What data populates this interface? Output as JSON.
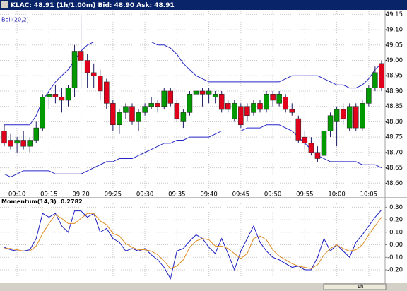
{
  "header": {
    "title": "KLAC: 48.91 (1h/1.00m) Bid: 48.90 Ask: 48.91"
  },
  "scrollbar": {
    "label": "1h"
  },
  "chart_data": [
    {
      "type": "candlestick",
      "label": "Boll(20,2)",
      "up_color": "#009a00",
      "down_color": "#e0001c",
      "grid": true,
      "categories": [
        null,
        null,
        "09:10",
        null,
        null,
        null,
        null,
        "09:15",
        null,
        null,
        null,
        null,
        "09:20",
        null,
        null,
        null,
        null,
        "09:25",
        null,
        null,
        null,
        null,
        "09:30",
        null,
        null,
        null,
        null,
        "09:35",
        null,
        null,
        null,
        null,
        "09:40",
        null,
        null,
        null,
        null,
        "09:45",
        null,
        null,
        null,
        null,
        "09:50",
        null,
        null,
        null,
        null,
        "09:55",
        null,
        null,
        null,
        null,
        "10:00",
        null,
        null,
        null,
        null,
        "10:05",
        null,
        null
      ],
      "open": [
        48.77,
        48.74,
        48.73,
        48.74,
        48.72,
        48.74,
        48.78,
        48.88,
        48.89,
        48.88,
        48.87,
        48.91,
        49.03,
        49.0,
        48.96,
        48.95,
        48.93,
        48.86,
        48.79,
        48.83,
        48.85,
        48.8,
        48.83,
        48.85,
        48.86,
        48.85,
        48.9,
        48.86,
        48.8,
        48.83,
        48.89,
        48.9,
        48.89,
        48.88,
        48.89,
        48.86,
        48.81,
        48.85,
        48.85,
        48.83,
        48.86,
        48.84,
        48.89,
        48.86,
        48.88,
        48.84,
        48.81,
        48.75,
        48.73,
        48.7,
        48.69,
        48.77,
        48.8,
        48.84,
        48.78,
        48.85,
        48.78,
        48.86,
        48.91,
        48.99
      ],
      "high": [
        48.79,
        48.76,
        48.75,
        48.77,
        48.75,
        48.8,
        48.89,
        48.9,
        48.92,
        48.91,
        48.92,
        49.05,
        49.15,
        49.02,
        48.99,
        48.97,
        48.94,
        48.87,
        48.84,
        48.86,
        48.86,
        48.84,
        48.86,
        48.88,
        48.87,
        48.91,
        48.91,
        48.87,
        48.84,
        48.9,
        48.91,
        48.91,
        48.91,
        48.9,
        48.9,
        48.87,
        48.87,
        48.86,
        48.86,
        48.87,
        48.87,
        48.9,
        48.9,
        48.9,
        48.89,
        48.86,
        48.82,
        48.77,
        48.75,
        48.72,
        48.78,
        48.83,
        48.85,
        48.86,
        48.86,
        48.86,
        48.87,
        48.92,
        48.98,
        49.0
      ],
      "low": [
        48.72,
        48.71,
        48.7,
        48.71,
        48.7,
        48.73,
        48.77,
        48.84,
        48.86,
        48.83,
        48.85,
        48.88,
        48.91,
        48.91,
        48.91,
        48.87,
        48.84,
        48.77,
        48.76,
        48.81,
        48.79,
        48.77,
        48.82,
        48.84,
        48.83,
        48.84,
        48.85,
        48.8,
        48.78,
        48.82,
        48.86,
        48.85,
        48.86,
        48.86,
        48.83,
        48.83,
        48.8,
        48.78,
        48.8,
        48.82,
        48.83,
        48.83,
        48.85,
        48.85,
        48.83,
        48.82,
        48.73,
        48.71,
        48.69,
        48.67,
        48.68,
        48.75,
        48.72,
        48.79,
        48.77,
        48.77,
        48.77,
        48.85,
        48.9,
        48.9
      ],
      "close": [
        48.73,
        48.72,
        48.74,
        48.72,
        48.74,
        48.78,
        48.88,
        48.89,
        48.88,
        48.87,
        48.91,
        49.03,
        49.0,
        48.96,
        48.95,
        48.9,
        48.86,
        48.79,
        48.83,
        48.85,
        48.8,
        48.83,
        48.85,
        48.86,
        48.85,
        48.9,
        48.86,
        48.81,
        48.83,
        48.89,
        48.9,
        48.89,
        48.9,
        48.89,
        48.84,
        48.84,
        48.86,
        48.79,
        48.82,
        48.86,
        48.84,
        48.89,
        48.87,
        48.89,
        48.84,
        48.83,
        48.74,
        48.73,
        48.7,
        48.68,
        48.77,
        48.82,
        48.84,
        48.81,
        48.85,
        48.78,
        48.86,
        48.91,
        48.96,
        48.91
      ],
      "overlay": {
        "color": "#2727c8",
        "upper": [
          48.79,
          48.79,
          48.79,
          48.79,
          48.79,
          48.82,
          48.87,
          48.9,
          48.93,
          48.95,
          48.97,
          49.0,
          49.03,
          49.05,
          49.06,
          49.06,
          49.06,
          49.06,
          49.06,
          49.06,
          49.06,
          49.06,
          49.06,
          49.06,
          49.05,
          49.05,
          49.04,
          49.02,
          48.99,
          48.97,
          48.95,
          48.94,
          48.93,
          48.93,
          48.93,
          48.93,
          48.93,
          48.93,
          48.93,
          48.93,
          48.93,
          48.93,
          48.93,
          48.93,
          48.94,
          48.95,
          48.95,
          48.95,
          48.95,
          48.95,
          48.94,
          48.93,
          48.92,
          48.92,
          48.91,
          48.91,
          48.92,
          48.94,
          48.97,
          48.99
        ],
        "lower": [
          48.63,
          48.62,
          48.63,
          48.64,
          48.64,
          48.64,
          48.64,
          48.64,
          48.63,
          48.63,
          48.63,
          48.63,
          48.63,
          48.64,
          48.65,
          48.66,
          48.67,
          48.67,
          48.68,
          48.68,
          48.68,
          48.69,
          48.7,
          48.71,
          48.72,
          48.73,
          48.73,
          48.74,
          48.74,
          48.75,
          48.75,
          48.75,
          48.75,
          48.76,
          48.77,
          48.77,
          48.77,
          48.77,
          48.78,
          48.78,
          48.78,
          48.79,
          48.79,
          48.79,
          48.78,
          48.77,
          48.75,
          48.73,
          48.71,
          48.69,
          48.68,
          48.67,
          48.67,
          48.67,
          48.67,
          48.67,
          48.66,
          48.66,
          48.66,
          48.65
        ]
      },
      "ylim": [
        48.58,
        49.16
      ],
      "yticks": [
        {
          "value": 48.6,
          "label": "48.60"
        },
        48.65,
        {
          "value": 48.7,
          "label": "48.70"
        },
        48.75,
        {
          "value": 48.8,
          "label": "48.80"
        },
        48.85,
        {
          "value": 48.9,
          "label": "48.90"
        },
        48.95,
        {
          "value": 49,
          "label": "49.00"
        },
        49.05,
        {
          "value": 49.1,
          "label": "49.10"
        },
        49.15
      ]
    },
    {
      "type": "line",
      "label": "Momentum(14,3)",
      "grid": true,
      "series": [
        {
          "color": "#1c1cc0",
          "values": [
            -0.02,
            -0.04,
            -0.05,
            -0.05,
            -0.04,
            0.05,
            0.25,
            0.22,
            0.25,
            0.15,
            0.1,
            0.27,
            0.27,
            0.22,
            0.25,
            0.1,
            0.13,
            0.05,
            0.02,
            -0.05,
            -0.03,
            -0.05,
            -0.03,
            -0.08,
            -0.12,
            -0.18,
            -0.27,
            -0.05,
            -0.03,
            0.03,
            0.08,
            0.05,
            -0.02,
            -0.07,
            0.05,
            -0.07,
            -0.2,
            -0.05,
            0.05,
            0.15,
            0.02,
            -0.05,
            -0.1,
            -0.12,
            -0.15,
            -0.18,
            -0.17,
            -0.2,
            -0.2,
            -0.1,
            0.05,
            -0.05,
            0,
            -0.05,
            -0.1,
            0.02,
            0.08,
            0.15,
            0.22,
            0.2782
          ]
        },
        {
          "color": "#e08a1e",
          "values": [
            -0.03,
            -0.03,
            -0.04,
            -0.05,
            -0.05,
            -0.01,
            0.09,
            0.17,
            0.24,
            0.21,
            0.17,
            0.17,
            0.21,
            0.25,
            0.25,
            0.19,
            0.16,
            0.09,
            0.07,
            0.01,
            -0.02,
            -0.04,
            -0.04,
            -0.05,
            -0.08,
            -0.13,
            -0.19,
            -0.17,
            -0.12,
            -0.02,
            0.03,
            0.05,
            0.04,
            -0.01,
            -0.01,
            -0.03,
            -0.07,
            -0.11,
            -0.07,
            0.05,
            0.07,
            0.04,
            -0.04,
            -0.09,
            -0.12,
            -0.15,
            -0.17,
            -0.18,
            -0.19,
            -0.16,
            -0.08,
            -0.03,
            0,
            -0.03,
            -0.05,
            -0.04,
            0,
            0.08,
            0.15,
            0.22
          ]
        }
      ],
      "ylim": [
        -0.29,
        0.33
      ],
      "yticks": [
        {
          "value": 0.3,
          "label": "0.30"
        },
        {
          "value": 0.2,
          "label": "0.20"
        },
        {
          "value": 0.1,
          "label": "0.10"
        },
        {
          "value": 0,
          "label": "0.00"
        },
        {
          "value": -0.1,
          "label": "-0.10"
        },
        {
          "value": -0.2,
          "label": "-0.20"
        }
      ]
    }
  ]
}
